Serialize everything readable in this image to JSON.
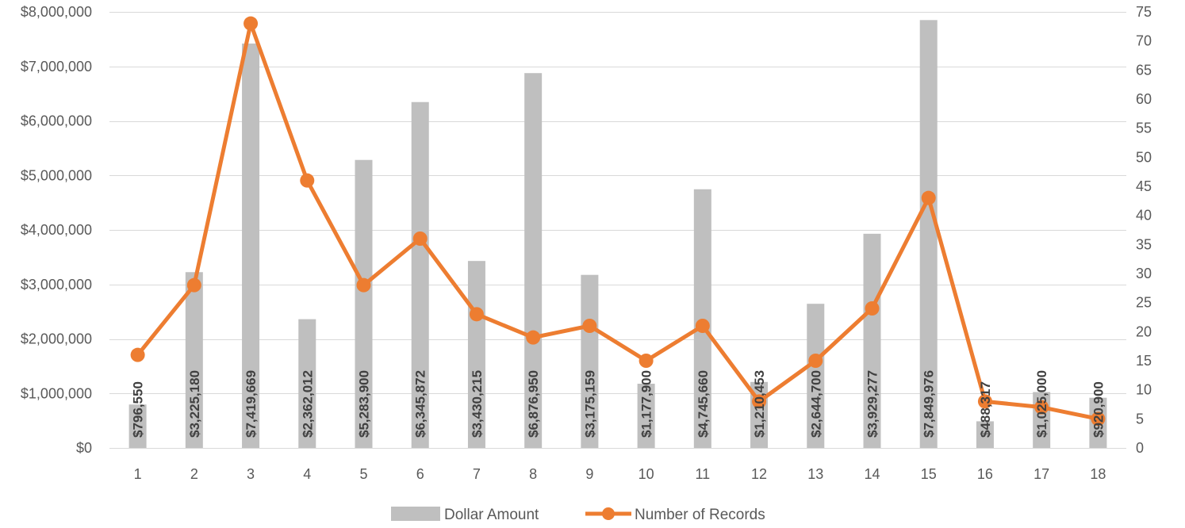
{
  "chart_data": {
    "type": "bar",
    "categories": [
      "1",
      "2",
      "3",
      "4",
      "5",
      "6",
      "7",
      "8",
      "9",
      "10",
      "11",
      "12",
      "13",
      "14",
      "15",
      "16",
      "17",
      "18"
    ],
    "series": [
      {
        "name": "Dollar Amount",
        "type": "bar",
        "axis": "left",
        "color": "#bfbfbf",
        "values": [
          796550,
          3225180,
          7419669,
          2362012,
          5283900,
          6345872,
          3430215,
          6876950,
          3175159,
          1177900,
          4745660,
          1210453,
          2644700,
          3929277,
          7849976,
          488317,
          1025000,
          920900
        ],
        "labels": [
          "$796,550",
          "$3,225,180",
          "$7,419,669",
          "$2,362,012",
          "$5,283,900",
          "$6,345,872",
          "$3,430,215",
          "$6,876,950",
          "$3,175,159",
          "$1,177,900",
          "$4,745,660",
          "$1,210,453",
          "$2,644,700",
          "$3,929,277",
          "$7,849,976",
          "$488,317",
          "$1,025,000",
          "$920,900"
        ]
      },
      {
        "name": "Number of Records",
        "type": "line",
        "axis": "right",
        "color": "#ed7d31",
        "values": [
          16,
          28,
          73,
          46,
          28,
          36,
          23,
          19,
          21,
          15,
          21,
          8,
          15,
          24,
          43,
          8,
          7,
          5
        ]
      }
    ],
    "y_left": {
      "ylim": [
        0,
        8000000
      ],
      "ticks": [
        0,
        1000000,
        2000000,
        3000000,
        4000000,
        5000000,
        6000000,
        7000000,
        8000000
      ],
      "tick_labels": [
        "$0",
        "$1,000,000",
        "$2,000,000",
        "$3,000,000",
        "$4,000,000",
        "$5,000,000",
        "$6,000,000",
        "$7,000,000",
        "$8,000,000"
      ]
    },
    "y_right": {
      "ylim": [
        0,
        75
      ],
      "ticks": [
        0,
        5,
        10,
        15,
        20,
        25,
        30,
        35,
        40,
        45,
        50,
        55,
        60,
        65,
        70,
        75
      ],
      "tick_labels": [
        "0",
        "5",
        "10",
        "15",
        "20",
        "25",
        "30",
        "35",
        "40",
        "45",
        "50",
        "55",
        "60",
        "65",
        "70",
        "75"
      ]
    },
    "grid": true,
    "legend": "bottom"
  }
}
